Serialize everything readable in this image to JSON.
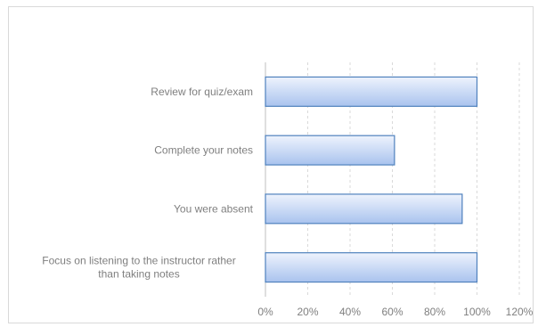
{
  "chart_data": {
    "type": "bar",
    "orientation": "horizontal",
    "categories": [
      "Review for quiz/exam",
      "Complete your notes",
      "You were absent",
      "Focus on listening to the instructor rather than taking notes"
    ],
    "category_lines": [
      [
        "Review for quiz/exam"
      ],
      [
        "Complete your notes"
      ],
      [
        "You were absent"
      ],
      [
        "Focus on listening to the instructor rather",
        "than taking notes"
      ]
    ],
    "values": [
      100,
      61,
      93,
      100
    ],
    "xlim": [
      0,
      120
    ],
    "xticks": [
      0,
      20,
      40,
      60,
      80,
      100,
      120
    ],
    "xtick_labels": [
      "0%",
      "20%",
      "40%",
      "60%",
      "80%",
      "100%",
      "120%"
    ],
    "title": "",
    "xlabel": "",
    "ylabel": "",
    "grid": "vertical-dashed",
    "legend": "none",
    "colors": {
      "bar_fill_light": "#eef3fd",
      "bar_fill_dark": "#a9c3ee",
      "bar_border": "#4f81bd"
    }
  }
}
